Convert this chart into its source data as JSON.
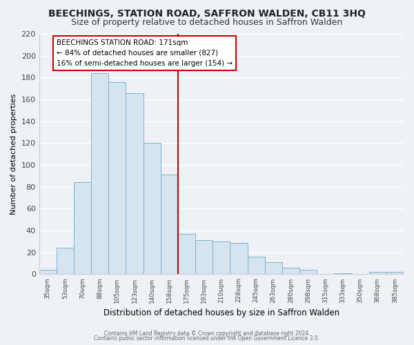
{
  "title": "BEECHINGS, STATION ROAD, SAFFRON WALDEN, CB11 3HQ",
  "subtitle": "Size of property relative to detached houses in Saffron Walden",
  "xlabel": "Distribution of detached houses by size in Saffron Walden",
  "ylabel": "Number of detached properties",
  "bar_labels": [
    "35sqm",
    "53sqm",
    "70sqm",
    "88sqm",
    "105sqm",
    "123sqm",
    "140sqm",
    "158sqm",
    "175sqm",
    "193sqm",
    "210sqm",
    "228sqm",
    "245sqm",
    "263sqm",
    "280sqm",
    "298sqm",
    "315sqm",
    "333sqm",
    "350sqm",
    "368sqm",
    "385sqm"
  ],
  "bar_values": [
    4,
    24,
    84,
    184,
    176,
    166,
    120,
    91,
    37,
    31,
    30,
    29,
    16,
    11,
    6,
    4,
    0,
    1,
    0,
    2,
    2
  ],
  "bar_color": "#d6e4f0",
  "bar_edge_color": "#7ab0cc",
  "vline_color": "#cc0000",
  "annotation_title": "BEECHINGS STATION ROAD: 171sqm",
  "annotation_line1": "← 84% of detached houses are smaller (827)",
  "annotation_line2": "16% of semi-detached houses are larger (154) →",
  "annotation_box_color": "#ffffff",
  "annotation_box_edge": "#cc0000",
  "ylim": [
    0,
    220
  ],
  "yticks": [
    0,
    20,
    40,
    60,
    80,
    100,
    120,
    140,
    160,
    180,
    200,
    220
  ],
  "footer1": "Contains HM Land Registry data © Crown copyright and database right 2024.",
  "footer2": "Contains public sector information licensed under the Open Government Licence 3.0.",
  "background_color": "#eef2f7",
  "grid_color": "#ffffff",
  "title_fontsize": 10,
  "subtitle_fontsize": 9
}
